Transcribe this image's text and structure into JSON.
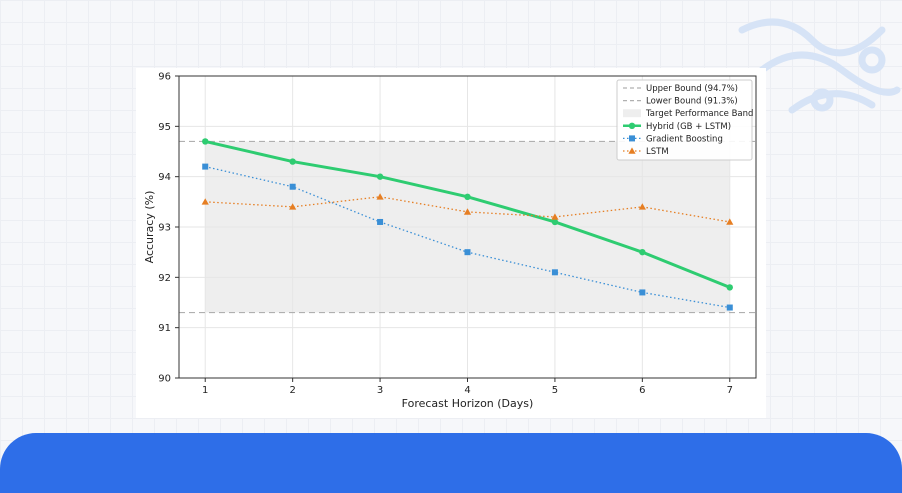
{
  "chart_data": {
    "type": "line",
    "xlabel": "Forecast Horizon (Days)",
    "ylabel": "Accuracy (%)",
    "x": [
      1,
      2,
      3,
      4,
      5,
      6,
      7
    ],
    "xlim": [
      0.7,
      7.3
    ],
    "ylim": [
      90,
      96
    ],
    "yticks": [
      90,
      91,
      92,
      93,
      94,
      95,
      96
    ],
    "grid": true,
    "legend_position": "top-right",
    "bounds": {
      "upper": {
        "name": "Upper Bound (94.7%)",
        "value": 94.7,
        "color": "#b0b0b0"
      },
      "lower": {
        "name": "Lower Bound (91.3%)",
        "value": 91.3,
        "color": "#b0b0b0"
      },
      "band": {
        "name": "Target Performance Band",
        "from": 91.3,
        "to": 94.7,
        "color": "#eeeeee"
      }
    },
    "series": [
      {
        "name": "Hybrid (GB + LSTM)",
        "values": [
          94.7,
          94.3,
          94.0,
          93.6,
          93.1,
          92.5,
          91.8
        ],
        "color": "#2ecc71",
        "style": "solid",
        "marker": "circle"
      },
      {
        "name": "Gradient Boosting",
        "values": [
          94.2,
          93.8,
          93.1,
          92.5,
          92.1,
          91.7,
          91.4
        ],
        "color": "#3a8fd6",
        "style": "dotted",
        "marker": "square"
      },
      {
        "name": "LSTM",
        "values": [
          93.5,
          93.4,
          93.6,
          93.3,
          93.2,
          93.4,
          93.1
        ],
        "color": "#e67e22",
        "style": "dotted",
        "marker": "triangle"
      }
    ]
  }
}
